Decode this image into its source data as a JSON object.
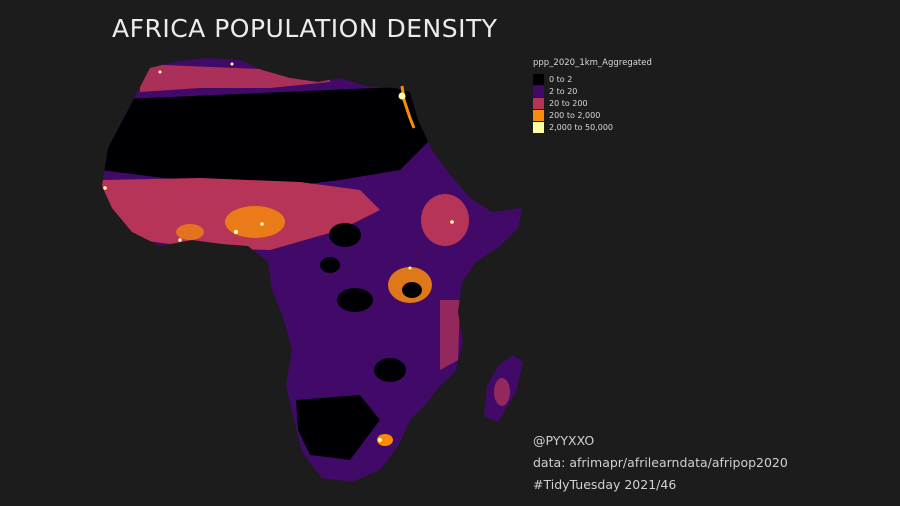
{
  "title": "AFRICA POPULATION DENSITY",
  "legend": {
    "title": "ppp_2020_1km_Aggregated",
    "items": [
      {
        "label": "0 to 2",
        "color": "#000004"
      },
      {
        "label": "2 to 20",
        "color": "#420a68"
      },
      {
        "label": "20 to 200",
        "color": "#b63458"
      },
      {
        "label": "200 to 2,000",
        "color": "#f98c0a"
      },
      {
        "label": "2,000 to 50,000",
        "color": "#fcffa4"
      }
    ]
  },
  "credits": {
    "author": "@PYYXXO",
    "source": "data: afrimapr/afrilearndata/afripop2020",
    "tag": "#TidyTuesday 2021/46"
  }
}
